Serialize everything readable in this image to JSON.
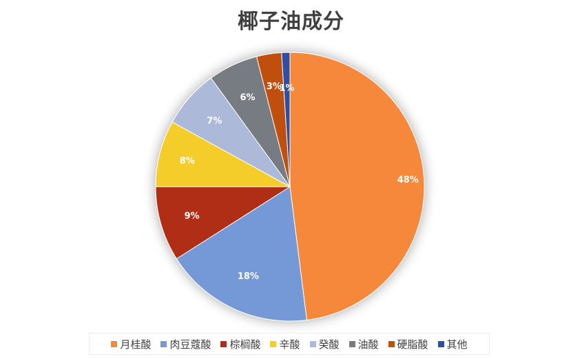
{
  "chart_data": {
    "type": "pie",
    "title": "椰子油成分",
    "categories": [
      "月桂酸",
      "肉豆蔻酸",
      "棕榈酸",
      "辛酸",
      "癸酸",
      "油酸",
      "硬脂酸",
      "其他"
    ],
    "values": [
      48,
      18,
      9,
      8,
      7,
      6,
      3,
      1
    ],
    "labels": [
      "48%",
      "18%",
      "9%",
      "8%",
      "7%",
      "6%",
      "3%",
      "1%"
    ],
    "colors": [
      "#f5883a",
      "#7599d6",
      "#b02d19",
      "#f5cd2c",
      "#adb9d8",
      "#777c83",
      "#c0500c",
      "#2d50a2"
    ],
    "legend_position": "bottom"
  }
}
